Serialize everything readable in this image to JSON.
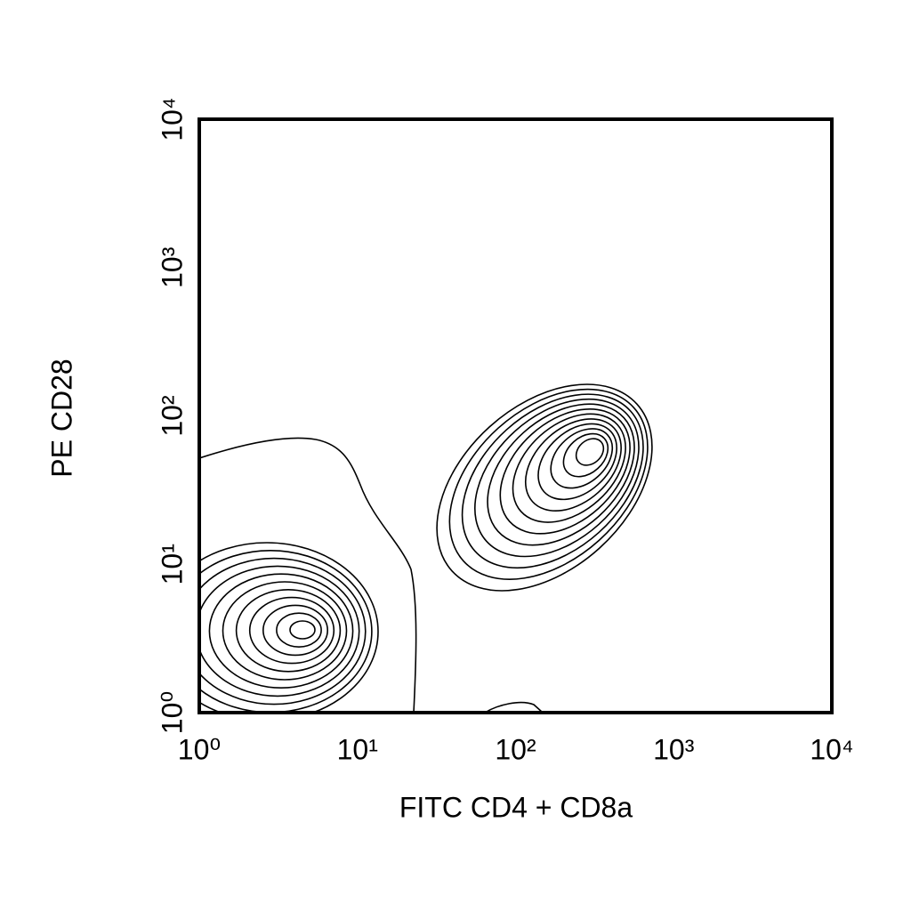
{
  "chart_data": {
    "type": "contour",
    "x_label": "FITC CD4 + CD8a",
    "y_label": "PE CD28",
    "xscale": "log",
    "yscale": "log",
    "xlim": [
      1,
      10000
    ],
    "ylim": [
      1,
      10000
    ],
    "xticks": [
      {
        "value": 1,
        "label": "10⁰"
      },
      {
        "value": 10,
        "label": "10¹"
      },
      {
        "value": 100,
        "label": "10²"
      },
      {
        "value": 1000,
        "label": "10³"
      },
      {
        "value": 10000,
        "label": "10⁴"
      }
    ],
    "yticks": [
      {
        "value": 1,
        "label": "10⁰"
      },
      {
        "value": 10,
        "label": "10¹"
      },
      {
        "value": 100,
        "label": "10²"
      },
      {
        "value": 1000,
        "label": "10³"
      },
      {
        "value": 10000,
        "label": "10⁴"
      }
    ],
    "color": "#000000"
  }
}
